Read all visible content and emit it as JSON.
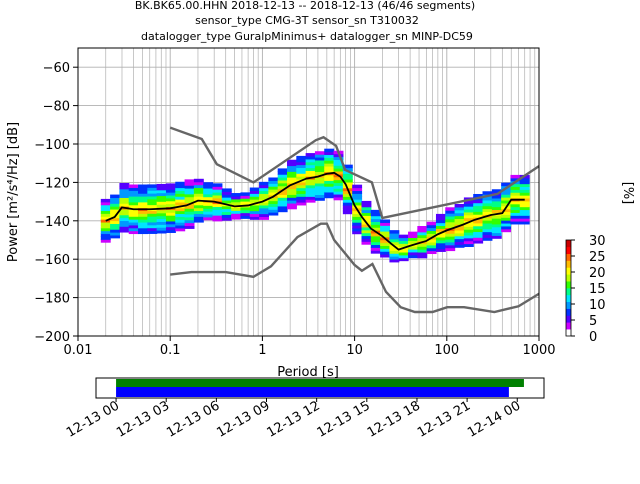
{
  "header": {
    "line1": "BK.BK65.00.HHN   2018-12-13 -- 2018-12-13  (46/46 segments)",
    "line2": "sensor_type CMG-3T sensor_sn T310032",
    "line3": "datalogger_type GuralpMinimus+ datalogger_sn MINP-DC59"
  },
  "chart_data": [
    {
      "type": "heatmap",
      "xlabel": "Period [s]",
      "ylabel": "Power [m²/s⁴/Hz] [dB]",
      "xscale": "log",
      "xlim": [
        0.01,
        1000
      ],
      "ylim": [
        -200,
        -50
      ],
      "xticks": [
        0.01,
        0.1,
        1,
        10,
        100,
        1000
      ],
      "xtick_labels": [
        "0.01",
        "0.1",
        "1",
        "10",
        "100",
        "1000"
      ],
      "yticks": [
        -200,
        -180,
        -160,
        -140,
        -120,
        -100,
        -80,
        -60
      ],
      "ytick_labels": [
        "−200",
        "−180",
        "−160",
        "−140",
        "−120",
        "−100",
        "−80",
        "−60"
      ],
      "grid": true,
      "colors": {
        "noise_model": "#666666",
        "median": "#000000"
      },
      "noise_models": {
        "high": {
          "x": [
            0.1,
            0.22,
            0.32,
            0.8,
            3.8,
            4.6,
            6.3,
            7.9,
            15.4,
            20,
            354.8,
            1000
          ],
          "y": [
            -91.5,
            -97.4,
            -110.5,
            -120.0,
            -98.0,
            -96.5,
            -101.0,
            -113.5,
            -120.0,
            -138.5,
            -126.0,
            -111.5
          ]
        },
        "low": {
          "x": [
            0.1,
            0.17,
            0.4,
            0.8,
            1.24,
            2.4,
            4.3,
            5.0,
            6.0,
            10.0,
            12.0,
            15.6,
            21.9,
            31.6,
            45.0,
            70.0,
            101.0,
            154.0,
            328.0,
            600.0,
            1000.0
          ],
          "y": [
            -168.0,
            -166.7,
            -166.7,
            -169.2,
            -163.7,
            -148.5,
            -141.5,
            -141.5,
            -150.0,
            -163.0,
            -166.0,
            -162.5,
            -177.0,
            -185.0,
            -187.5,
            -187.5,
            -185.0,
            -185.0,
            -187.5,
            -184.5,
            -178.0
          ]
        }
      },
      "median": {
        "x": [
          0.02,
          0.025,
          0.03,
          0.04,
          0.06,
          0.1,
          0.15,
          0.2,
          0.3,
          0.5,
          0.7,
          1.0,
          1.3,
          2.0,
          3.0,
          4.0,
          5.0,
          6.0,
          7.0,
          8.0,
          10.0,
          12.0,
          15.0,
          20.0,
          25.0,
          30.0,
          40.0,
          60.0,
          80.0,
          100.0,
          150.0,
          200.0,
          300.0,
          400.0,
          500.0,
          700.0
        ],
        "y": [
          -140.0,
          -138.0,
          -133.0,
          -134.0,
          -134.0,
          -133.5,
          -132.0,
          -129.5,
          -130.0,
          -132.5,
          -132.0,
          -130.0,
          -127.5,
          -121.5,
          -118.0,
          -117.0,
          -115.5,
          -115.0,
          -117.0,
          -121.0,
          -132.0,
          -138.0,
          -144.0,
          -148.0,
          -152.0,
          -155.0,
          -153.0,
          -150.5,
          -147.0,
          -145.0,
          -142.0,
          -139.5,
          -137.0,
          -136.0,
          -129.0,
          -129.0
        ]
      },
      "colorbar": {
        "label": "[%]",
        "range": [
          0,
          30
        ],
        "ticks": [
          0,
          5,
          10,
          15,
          20,
          25,
          30
        ],
        "tick_labels": [
          "0",
          "5",
          "10",
          "15",
          "20",
          "25",
          "30"
        ],
        "colors": [
          "#ffffff",
          "#cc00ff",
          "#5500ff",
          "#0033ff",
          "#0099ff",
          "#00e5ff",
          "#00ff88",
          "#33ff00",
          "#bbff00",
          "#ffff00",
          "#ffbb00",
          "#ff6600",
          "#ff0000",
          "#cc0000"
        ]
      }
    },
    {
      "type": "timeline",
      "time_range": [
        "12-13 00",
        "12-14 03"
      ],
      "tick_labels": [
        "12-13 00",
        "12-13 03",
        "12-13 06",
        "12-13 09",
        "12-13 12",
        "12-13 15",
        "12-13 18",
        "12-13 21",
        "12-14 00"
      ],
      "tick_hours": [
        0,
        3,
        6,
        9,
        12,
        15,
        18,
        21,
        24
      ],
      "range_hours": [
        -1.2,
        25.6
      ],
      "bars": [
        {
          "color": "#008000",
          "start_hour": 0,
          "end_hour": 24.4
        },
        {
          "color": "#0000ff",
          "start_hour": 0,
          "end_hour": 23.5
        }
      ]
    }
  ]
}
